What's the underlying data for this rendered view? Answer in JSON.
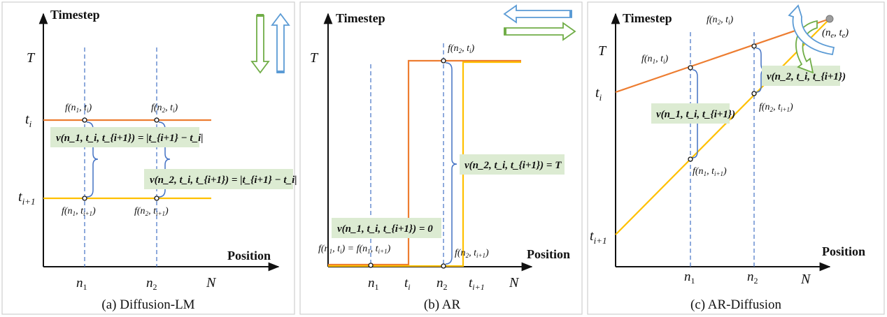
{
  "colors": {
    "orange": "#ed7d31",
    "yellow": "#ffc000",
    "blue": "#4472c4",
    "dashed": "#4472c4",
    "green_box": "#dcebd2",
    "arrow_green": "#70ad47",
    "arrow_blue": "#5b9bd5"
  },
  "panel_a": {
    "caption": "(a) Diffusion-LM",
    "ylabel": "Timestep",
    "xlabel": "Position",
    "y_ticks": {
      "T": "T",
      "ti": "t_i",
      "ti1": "t_{i+1}"
    },
    "x_ticks": {
      "n1": "n_1",
      "n2": "n_2",
      "N": "N"
    },
    "points": {
      "f_n1_ti": "f(n_1, t_i)",
      "f_n2_ti": "f(n_2, t_i)",
      "f_n1_ti1": "f(n_1, t_{i+1})",
      "f_n2_ti1": "f(n_2, t_{i+1})"
    },
    "eq1": "v(n_1, t_i, t_{i+1}) = |t_{i+1} − t_i|",
    "eq2": "v(n_2, t_i, t_{i+1}) = |t_{i+1} − t_i|"
  },
  "panel_b": {
    "caption": "(b) AR",
    "ylabel": "Timestep",
    "xlabel": "Position",
    "y_ticks": {
      "T": "T"
    },
    "x_ticks": {
      "n1": "n_1",
      "ti": "t_i",
      "n2": "n_2",
      "ti1": "t_{i+1}",
      "N": "N"
    },
    "points": {
      "f_n2_ti": "f(n_2, t_i)",
      "f_n1_eq": "f(n_1, t_i) = f(n_1, t_{i+1})",
      "f_n2_ti1": "f(n_2, t_{i+1})"
    },
    "eq1": "v(n_1, t_i, t_{i+1}) = 0",
    "eq2": "v(n_2, t_i, t_{i+1}) = T"
  },
  "panel_c": {
    "caption": "(c) AR-Diffusion",
    "ylabel": "Timestep",
    "xlabel": "Position",
    "y_ticks": {
      "T": "T",
      "ti": "t_i",
      "ti1": "t_{i+1}"
    },
    "x_ticks": {
      "n1": "n_1",
      "n2": "n_2",
      "N": "N"
    },
    "points": {
      "f_n2_ti": "f(n_2, t_i)",
      "f_n1_ti": "f(n_1, t_i)",
      "ne_te": "(n_e, t_e)",
      "f_n2_ti1": "f(n_2, t_{i+1})",
      "f_n1_ti1": "f(n_1, t_{i+1})"
    },
    "eq1": "v(n_1, t_i, t_{i+1})",
    "eq2": "v(n_2, t_i, t_{i+1})"
  }
}
